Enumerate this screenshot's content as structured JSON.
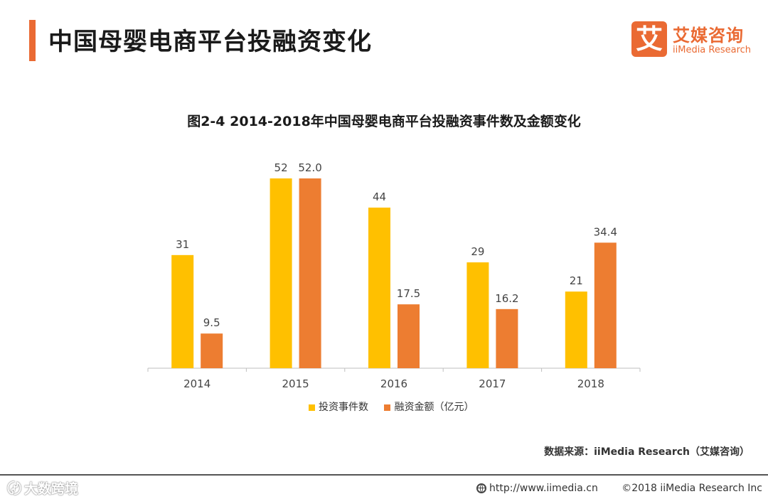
{
  "header": {
    "title": "中国母婴电商平台投融资变化",
    "logo_char": "艾",
    "logo_cn": "艾媒咨询",
    "logo_en": "iiMedia Research"
  },
  "colors": {
    "accent": "#ea6a33",
    "series_count": "#ffc000",
    "series_amount": "#ed7d31"
  },
  "chart_data": {
    "type": "bar",
    "title": "图2-4 2014-2018年中国母婴电商平台投融资事件数及金额变化",
    "categories": [
      "2014",
      "2015",
      "2016",
      "2017",
      "2018"
    ],
    "series": [
      {
        "name": "投资事件数",
        "values": [
          31,
          52,
          44,
          29,
          21
        ],
        "labels": [
          "31",
          "52",
          "44",
          "29",
          "21"
        ]
      },
      {
        "name": "融资金额（亿元）",
        "values": [
          9.5,
          52.0,
          17.5,
          16.2,
          34.4
        ],
        "labels": [
          "9.5",
          "52.0",
          "17.5",
          "16.2",
          "34.4"
        ]
      }
    ],
    "xlabel": "",
    "ylabel": "",
    "ylim": [
      0,
      52
    ],
    "grid": false,
    "legend": "bottom-center"
  },
  "source": "数据来源：iiMedia Research（艾媒咨询）",
  "footer": {
    "watermark": "大数跨境",
    "url": "http://www.iimedia.cn",
    "copyright": "©2018  iiMedia Research Inc"
  }
}
